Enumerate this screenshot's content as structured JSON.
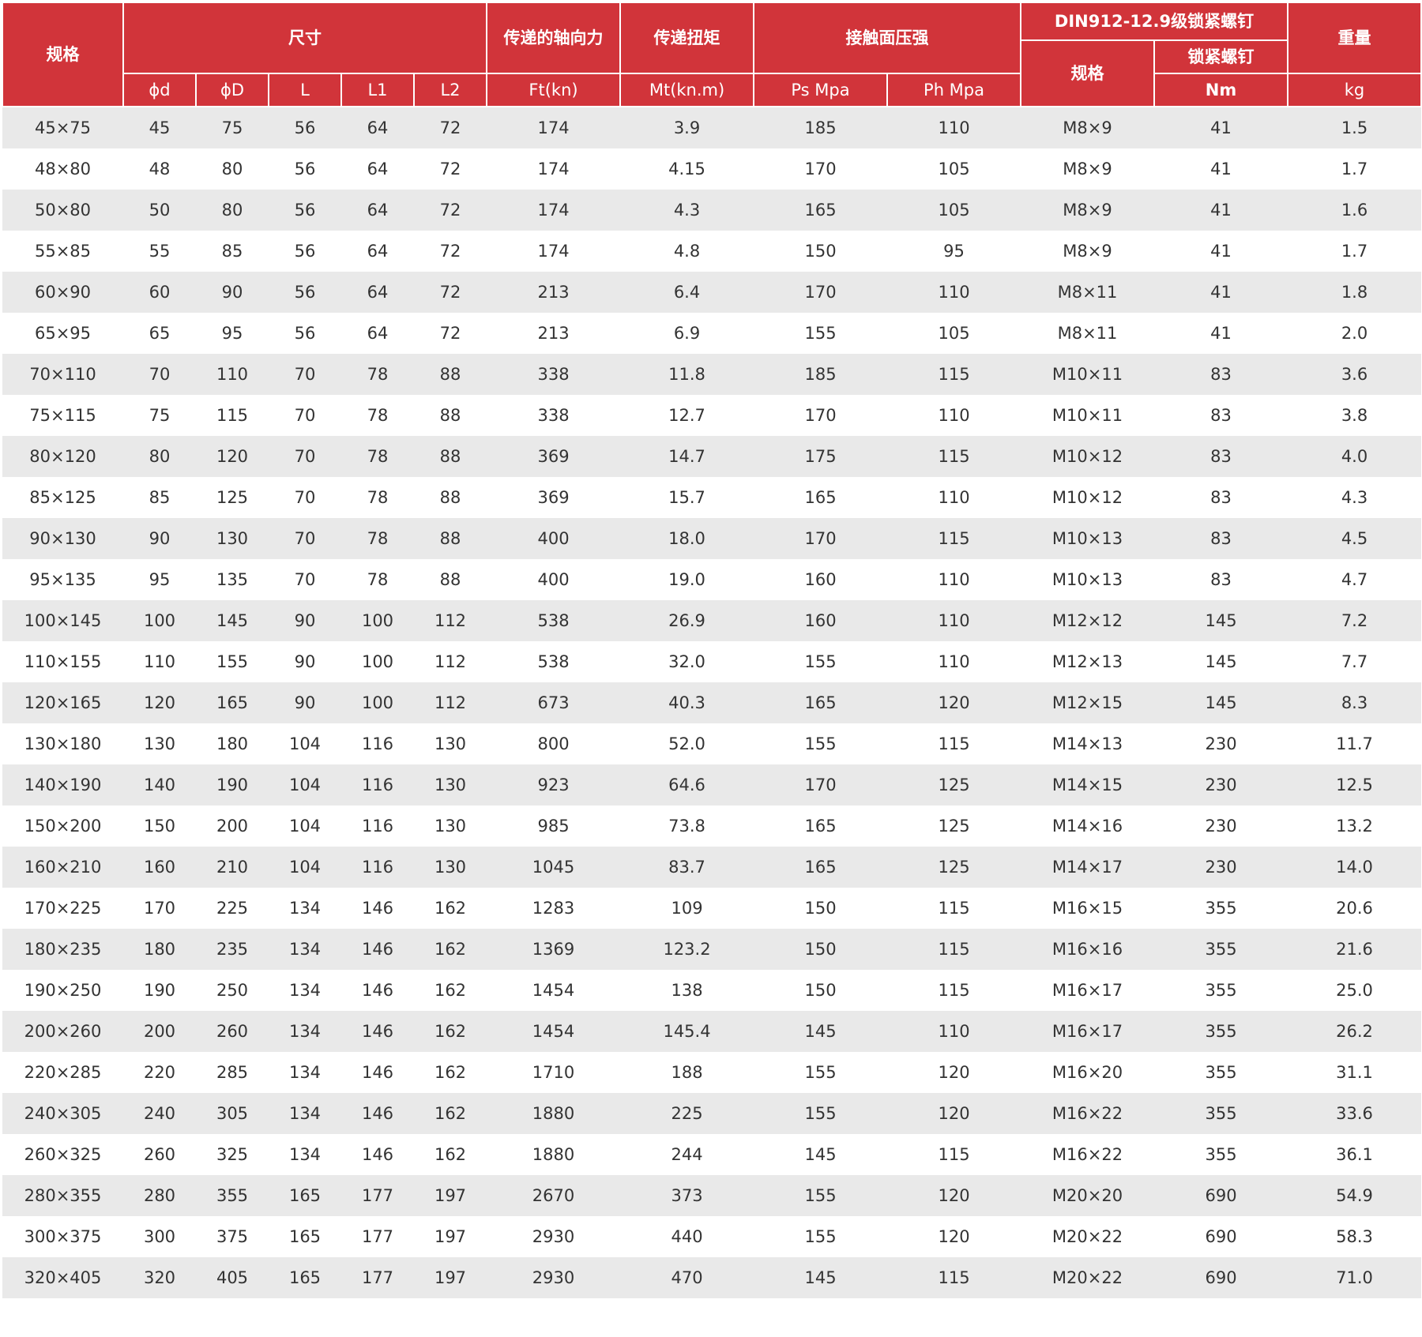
{
  "header": {
    "spec": "规格",
    "size": "尺寸",
    "axial_force": "传递的轴向力",
    "torque": "传递扭矩",
    "pressure": "接触面压强",
    "screw_group": "DIN912-12.9级锁紧螺钉",
    "weight": "重量",
    "screw_spec": "规格",
    "screw_torque_label": "锁紧螺钉",
    "d": "ϕd",
    "D": "ϕD",
    "L": "L",
    "L1": "L1",
    "L2": "L2",
    "ft": "Ft(kn)",
    "mt": "Mt(kn.m)",
    "ps": "Ps Mpa",
    "ph": "Ph Mpa",
    "nm": "Nm",
    "kg": "kg"
  },
  "rows": [
    [
      "45×75",
      "45",
      "75",
      "56",
      "64",
      "72",
      "174",
      "3.9",
      "185",
      "110",
      "M8×9",
      "41",
      "1.5"
    ],
    [
      "48×80",
      "48",
      "80",
      "56",
      "64",
      "72",
      "174",
      "4.15",
      "170",
      "105",
      "M8×9",
      "41",
      "1.7"
    ],
    [
      "50×80",
      "50",
      "80",
      "56",
      "64",
      "72",
      "174",
      "4.3",
      "165",
      "105",
      "M8×9",
      "41",
      "1.6"
    ],
    [
      "55×85",
      "55",
      "85",
      "56",
      "64",
      "72",
      "174",
      "4.8",
      "150",
      "95",
      "M8×9",
      "41",
      "1.7"
    ],
    [
      "60×90",
      "60",
      "90",
      "56",
      "64",
      "72",
      "213",
      "6.4",
      "170",
      "110",
      "M8×11",
      "41",
      "1.8"
    ],
    [
      "65×95",
      "65",
      "95",
      "56",
      "64",
      "72",
      "213",
      "6.9",
      "155",
      "105",
      "M8×11",
      "41",
      "2.0"
    ],
    [
      "70×110",
      "70",
      "110",
      "70",
      "78",
      "88",
      "338",
      "11.8",
      "185",
      "115",
      "M10×11",
      "83",
      "3.6"
    ],
    [
      "75×115",
      "75",
      "115",
      "70",
      "78",
      "88",
      "338",
      "12.7",
      "170",
      "110",
      "M10×11",
      "83",
      "3.8"
    ],
    [
      "80×120",
      "80",
      "120",
      "70",
      "78",
      "88",
      "369",
      "14.7",
      "175",
      "115",
      "M10×12",
      "83",
      "4.0"
    ],
    [
      "85×125",
      "85",
      "125",
      "70",
      "78",
      "88",
      "369",
      "15.7",
      "165",
      "110",
      "M10×12",
      "83",
      "4.3"
    ],
    [
      "90×130",
      "90",
      "130",
      "70",
      "78",
      "88",
      "400",
      "18.0",
      "170",
      "115",
      "M10×13",
      "83",
      "4.5"
    ],
    [
      "95×135",
      "95",
      "135",
      "70",
      "78",
      "88",
      "400",
      "19.0",
      "160",
      "110",
      "M10×13",
      "83",
      "4.7"
    ],
    [
      "100×145",
      "100",
      "145",
      "90",
      "100",
      "112",
      "538",
      "26.9",
      "160",
      "110",
      "M12×12",
      "145",
      "7.2"
    ],
    [
      "110×155",
      "110",
      "155",
      "90",
      "100",
      "112",
      "538",
      "32.0",
      "155",
      "110",
      "M12×13",
      "145",
      "7.7"
    ],
    [
      "120×165",
      "120",
      "165",
      "90",
      "100",
      "112",
      "673",
      "40.3",
      "165",
      "120",
      "M12×15",
      "145",
      "8.3"
    ],
    [
      "130×180",
      "130",
      "180",
      "104",
      "116",
      "130",
      "800",
      "52.0",
      "155",
      "115",
      "M14×13",
      "230",
      "11.7"
    ],
    [
      "140×190",
      "140",
      "190",
      "104",
      "116",
      "130",
      "923",
      "64.6",
      "170",
      "125",
      "M14×15",
      "230",
      "12.5"
    ],
    [
      "150×200",
      "150",
      "200",
      "104",
      "116",
      "130",
      "985",
      "73.8",
      "165",
      "125",
      "M14×16",
      "230",
      "13.2"
    ],
    [
      "160×210",
      "160",
      "210",
      "104",
      "116",
      "130",
      "1045",
      "83.7",
      "165",
      "125",
      "M14×17",
      "230",
      "14.0"
    ],
    [
      "170×225",
      "170",
      "225",
      "134",
      "146",
      "162",
      "1283",
      "109",
      "150",
      "115",
      "M16×15",
      "355",
      "20.6"
    ],
    [
      "180×235",
      "180",
      "235",
      "134",
      "146",
      "162",
      "1369",
      "123.2",
      "150",
      "115",
      "M16×16",
      "355",
      "21.6"
    ],
    [
      "190×250",
      "190",
      "250",
      "134",
      "146",
      "162",
      "1454",
      "138",
      "150",
      "115",
      "M16×17",
      "355",
      "25.0"
    ],
    [
      "200×260",
      "200",
      "260",
      "134",
      "146",
      "162",
      "1454",
      "145.4",
      "145",
      "110",
      "M16×17",
      "355",
      "26.2"
    ],
    [
      "220×285",
      "220",
      "285",
      "134",
      "146",
      "162",
      "1710",
      "188",
      "155",
      "120",
      "M16×20",
      "355",
      "31.1"
    ],
    [
      "240×305",
      "240",
      "305",
      "134",
      "146",
      "162",
      "1880",
      "225",
      "155",
      "120",
      "M16×22",
      "355",
      "33.6"
    ],
    [
      "260×325",
      "260",
      "325",
      "134",
      "146",
      "162",
      "1880",
      "244",
      "145",
      "115",
      "M16×22",
      "355",
      "36.1"
    ],
    [
      "280×355",
      "280",
      "355",
      "165",
      "177",
      "197",
      "2670",
      "373",
      "155",
      "120",
      "M20×20",
      "690",
      "54.9"
    ],
    [
      "300×375",
      "300",
      "375",
      "165",
      "177",
      "197",
      "2930",
      "440",
      "155",
      "120",
      "M20×22",
      "690",
      "58.3"
    ],
    [
      "320×405",
      "320",
      "405",
      "165",
      "177",
      "197",
      "2930",
      "470",
      "145",
      "115",
      "M20×22",
      "690",
      "71.0"
    ]
  ]
}
